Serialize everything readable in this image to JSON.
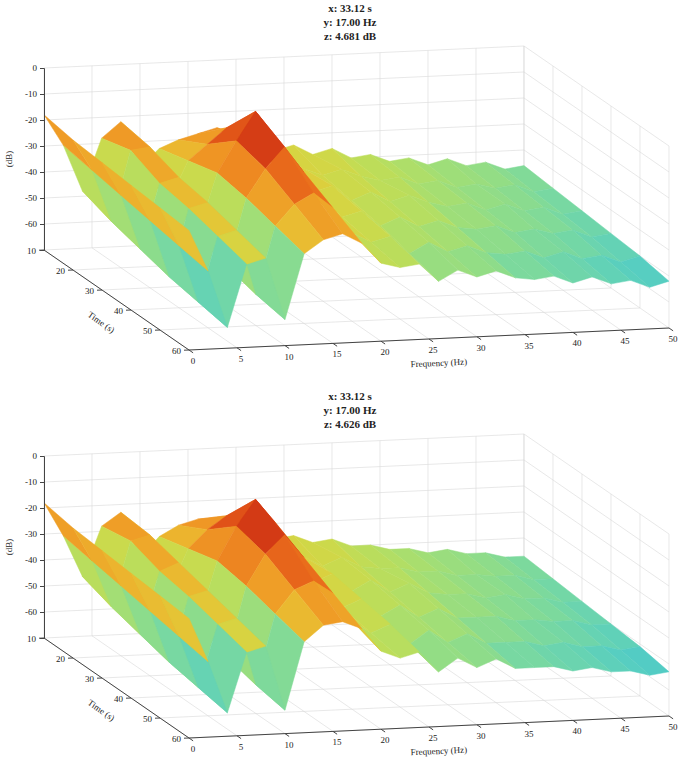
{
  "chart_data": [
    {
      "type": "surface",
      "annotations": [
        "x: 33.12 s",
        "y: 17.00 Hz",
        "z: 4.681 dB"
      ],
      "x_label": "Frequency (Hz)",
      "y_label": "Time (s)",
      "z_label": "(dB)",
      "x": [
        0,
        2,
        4,
        6,
        8,
        10,
        12,
        14,
        16,
        18,
        20,
        22,
        24,
        26,
        28,
        30,
        32,
        34,
        36,
        38,
        40,
        42,
        44,
        46,
        48,
        50
      ],
      "y": [
        10,
        20,
        30,
        40,
        50,
        60
      ],
      "z": [
        [
          -18,
          -30,
          -48,
          -28,
          -22,
          -40,
          -33,
          -30,
          -28,
          -26,
          -32,
          -30,
          -36,
          -34,
          -38,
          -36,
          -40,
          -39,
          -42,
          -41,
          -44,
          -42,
          -45,
          -44,
          -47,
          -46
        ],
        [
          -20,
          -32,
          -52,
          -25,
          -24,
          -45,
          -30,
          -24,
          -18,
          -22,
          -30,
          -33,
          -35,
          -38,
          -36,
          -39,
          -41,
          -40,
          -43,
          -42,
          -45,
          -44,
          -46,
          -45,
          -48,
          -47
        ],
        [
          -21,
          -34,
          -55,
          -30,
          -28,
          -50,
          -27,
          -15,
          -4,
          -14,
          -30,
          -36,
          -34,
          -40,
          -37,
          -41,
          -39,
          -42,
          -44,
          -43,
          -46,
          -44,
          -47,
          -46,
          -49,
          -48
        ],
        [
          -22,
          -36,
          -58,
          -32,
          -30,
          -55,
          -29,
          -18,
          -10,
          -20,
          -33,
          -38,
          -36,
          -42,
          -39,
          -43,
          -41,
          -44,
          -45,
          -44,
          -47,
          -46,
          -48,
          -47,
          -50,
          -49
        ],
        [
          -23,
          -38,
          -60,
          -35,
          -33,
          -58,
          -32,
          -24,
          -20,
          -26,
          -36,
          -40,
          -38,
          -45,
          -41,
          -45,
          -43,
          -46,
          -47,
          -46,
          -49,
          -47,
          -50,
          -49,
          -52,
          -50
        ],
        [
          -24,
          -40,
          -62,
          -38,
          -36,
          -60,
          -35,
          -30,
          -28,
          -32,
          -40,
          -42,
          -41,
          -48,
          -44,
          -47,
          -45,
          -48,
          -49,
          -48,
          -51,
          -49,
          -52,
          -51,
          -54,
          -52
        ]
      ],
      "xlim": [
        0,
        50
      ],
      "ylim": [
        10,
        60
      ],
      "zlim": [
        -70,
        0
      ],
      "xticks": [
        0,
        5,
        10,
        15,
        20,
        25,
        30,
        35,
        40,
        45,
        50
      ],
      "yticks": [
        10,
        20,
        30,
        40,
        50,
        60
      ],
      "zticks": [
        -60,
        -50,
        -40,
        -30,
        -20,
        -10,
        0
      ],
      "grid": true
    },
    {
      "type": "surface",
      "annotations": [
        "x: 33.12 s",
        "y: 17.00 Hz",
        "z: 4.626 dB"
      ],
      "x_label": "Frequency (Hz)",
      "y_label": "Time (s)",
      "z_label": "(dB)",
      "x": [
        0,
        2,
        4,
        6,
        8,
        10,
        12,
        14,
        16,
        18,
        20,
        22,
        24,
        26,
        28,
        30,
        32,
        34,
        36,
        38,
        40,
        42,
        44,
        46,
        48,
        50
      ],
      "y": [
        10,
        20,
        30,
        40,
        50,
        60
      ],
      "z": [
        [
          -18,
          -31,
          -47,
          -28,
          -23,
          -41,
          -33,
          -29,
          -27,
          -27,
          -32,
          -31,
          -36,
          -35,
          -38,
          -37,
          -40,
          -40,
          -42,
          -42,
          -44,
          -43,
          -45,
          -45,
          -47,
          -47
        ],
        [
          -20,
          -33,
          -51,
          -26,
          -24,
          -46,
          -30,
          -23,
          -18,
          -21,
          -30,
          -34,
          -35,
          -39,
          -36,
          -40,
          -41,
          -41,
          -43,
          -43,
          -45,
          -45,
          -46,
          -46,
          -48,
          -48
        ],
        [
          -21,
          -35,
          -54,
          -30,
          -27,
          -51,
          -27,
          -14,
          -4,
          -13,
          -29,
          -37,
          -34,
          -41,
          -37,
          -42,
          -39,
          -43,
          -44,
          -44,
          -46,
          -45,
          -47,
          -47,
          -49,
          -49
        ],
        [
          -22,
          -37,
          -57,
          -32,
          -30,
          -56,
          -29,
          -17,
          -10,
          -19,
          -33,
          -39,
          -36,
          -43,
          -39,
          -44,
          -41,
          -45,
          -45,
          -45,
          -47,
          -47,
          -48,
          -48,
          -50,
          -50
        ],
        [
          -23,
          -39,
          -59,
          -35,
          -33,
          -59,
          -32,
          -23,
          -20,
          -25,
          -36,
          -41,
          -38,
          -46,
          -41,
          -46,
          -43,
          -47,
          -47,
          -47,
          -49,
          -48,
          -50,
          -50,
          -52,
          -51
        ],
        [
          -24,
          -41,
          -61,
          -38,
          -36,
          -61,
          -35,
          -29,
          -28,
          -31,
          -40,
          -43,
          -41,
          -49,
          -44,
          -48,
          -45,
          -49,
          -49,
          -49,
          -51,
          -50,
          -52,
          -52,
          -54,
          -53
        ]
      ],
      "xlim": [
        0,
        50
      ],
      "ylim": [
        10,
        60
      ],
      "zlim": [
        -70,
        0
      ],
      "xticks": [
        0,
        5,
        10,
        15,
        20,
        25,
        30,
        35,
        40,
        45,
        50
      ],
      "yticks": [
        10,
        20,
        30,
        40,
        50,
        60
      ],
      "zticks": [
        -60,
        -50,
        -40,
        -30,
        -20,
        -10,
        0
      ],
      "grid": true
    }
  ]
}
